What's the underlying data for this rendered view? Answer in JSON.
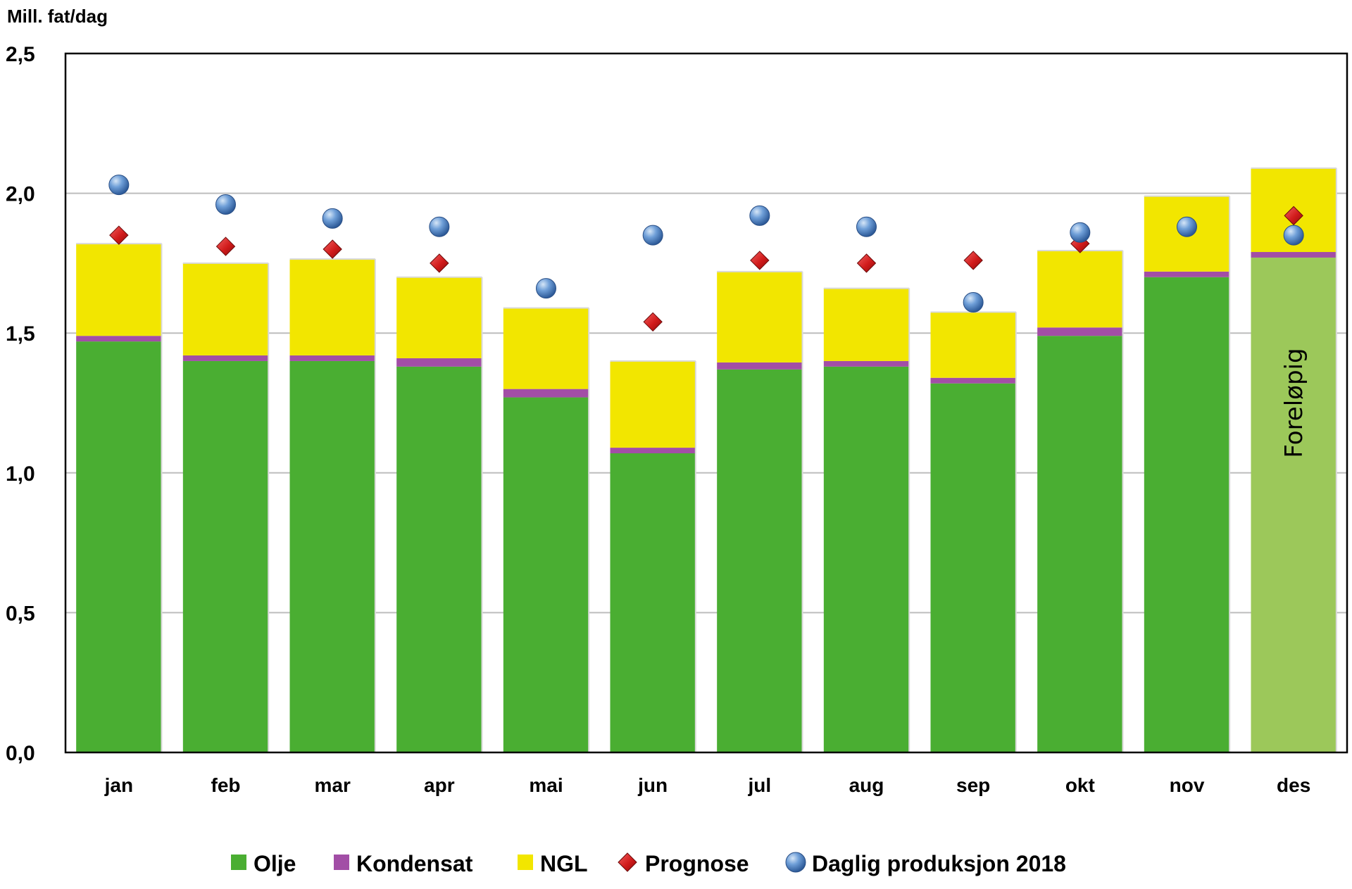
{
  "chart_data": {
    "type": "bar",
    "stacked": true,
    "ylabel": "Mill. fat/dag",
    "ylim": [
      0,
      2.5
    ],
    "yticks": [
      "0,0",
      "0,5",
      "1,0",
      "1,5",
      "2,0",
      "2,5"
    ],
    "ytick_values": [
      0,
      0.5,
      1.0,
      1.5,
      2.0,
      2.5
    ],
    "grid": true,
    "legend_position": "bottom",
    "categories": [
      "jan",
      "feb",
      "mar",
      "apr",
      "mai",
      "jun",
      "jul",
      "aug",
      "sep",
      "okt",
      "nov",
      "des"
    ],
    "series": [
      {
        "name": "Olje",
        "kind": "bar",
        "color": "#4aae32",
        "values": [
          1.47,
          1.4,
          1.4,
          1.38,
          1.27,
          1.07,
          1.37,
          1.38,
          1.32,
          1.49,
          1.7,
          1.77
        ]
      },
      {
        "name": "Kondensat",
        "kind": "bar",
        "color": "#a24ea6",
        "values": [
          0.02,
          0.02,
          0.02,
          0.03,
          0.03,
          0.02,
          0.025,
          0.02,
          0.02,
          0.03,
          0.02,
          0.02
        ]
      },
      {
        "name": "NGL",
        "kind": "bar",
        "color": "#f2e600",
        "values": [
          0.33,
          0.33,
          0.345,
          0.29,
          0.29,
          0.31,
          0.325,
          0.26,
          0.235,
          0.275,
          0.27,
          0.3
        ]
      },
      {
        "name": "Prognose",
        "kind": "marker",
        "marker": "diamond",
        "color": "#c8102e",
        "values": [
          1.85,
          1.81,
          1.8,
          1.75,
          null,
          1.54,
          1.76,
          1.75,
          1.76,
          1.82,
          1.88,
          1.92
        ]
      },
      {
        "name": "Daglig produksjon 2018",
        "kind": "marker",
        "marker": "circle",
        "color": "#4f81bd",
        "values": [
          2.03,
          1.96,
          1.91,
          1.88,
          1.66,
          1.85,
          1.92,
          1.88,
          1.61,
          1.86,
          1.88,
          1.85
        ]
      }
    ],
    "preliminary_category": "des",
    "preliminary_color": "#9cc85a",
    "preliminary_label": "Foreløpig"
  }
}
